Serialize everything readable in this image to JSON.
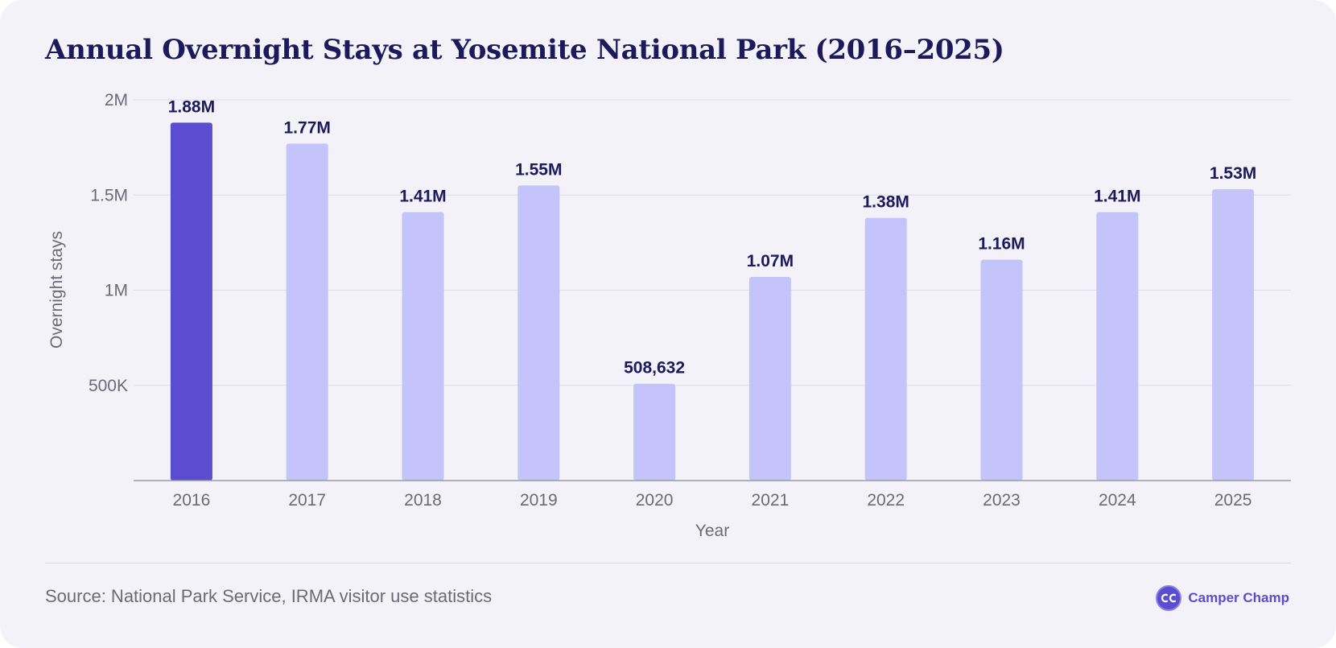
{
  "chart_data": {
    "type": "bar",
    "title": "Annual Overnight Stays at Yosemite National Park (2016–2025)",
    "xlabel": "Year",
    "ylabel": "Overnight stays",
    "categories": [
      "2016",
      "2017",
      "2018",
      "2019",
      "2020",
      "2021",
      "2022",
      "2023",
      "2024",
      "2025"
    ],
    "values": [
      1880000,
      1770000,
      1410000,
      1550000,
      508632,
      1070000,
      1380000,
      1160000,
      1410000,
      1530000
    ],
    "data_labels": [
      "1.88M",
      "1.77M",
      "1.41M",
      "1.55M",
      "508,632",
      "1.07M",
      "1.38M",
      "1.16M",
      "1.41M",
      "1.53M"
    ],
    "highlight_index": 0,
    "ylim": [
      0,
      2000000
    ],
    "yticks": [
      500000,
      1000000,
      1500000,
      2000000
    ],
    "ytick_labels": [
      "500K",
      "1M",
      "1.5M",
      "2M"
    ],
    "grid": true,
    "legend": "none",
    "colors": {
      "highlight_bar": "#5b4cd0",
      "bar": "#c4c4fb",
      "grid": "#dedde6",
      "axis": "#9a99a6"
    }
  },
  "footer": {
    "source": "Source: National Park Service, IRMA visitor use statistics",
    "brand_name": "Camper Champ",
    "brand_logo_icon": "cc-logo-icon"
  }
}
